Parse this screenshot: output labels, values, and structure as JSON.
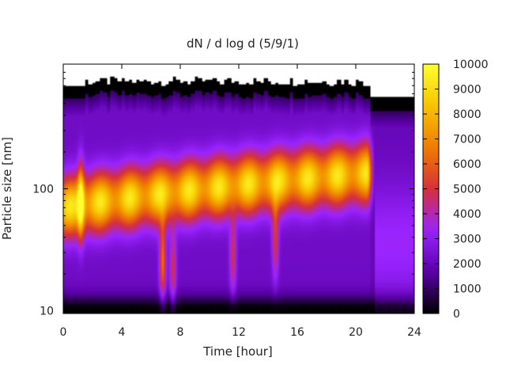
{
  "chart_data": {
    "type": "heatmap",
    "title": "dN / d log d (5/9/1)",
    "xlabel": "Time [hour]",
    "ylabel": "Particle size [nm]",
    "xlim": [
      0,
      24
    ],
    "ylim": [
      9.5,
      1050
    ],
    "yscale": "log",
    "xticks": [
      0,
      4,
      8,
      12,
      16,
      20,
      24
    ],
    "yticks": [
      10,
      100
    ],
    "colorbar": {
      "min": 0,
      "max": 10000,
      "ticks": [
        0,
        1000,
        2000,
        3000,
        4000,
        5000,
        6000,
        7000,
        8000,
        9000,
        10000
      ],
      "colormap": [
        "#000000",
        "#5a00a8",
        "#9a24ff",
        "#d6303a",
        "#f07d00",
        "#f7c400",
        "#ffff30"
      ]
    },
    "grid": false,
    "legend": "colorbar-right",
    "features": [
      {
        "label": "main mode",
        "t_start": 0,
        "t_end": 21,
        "d_start_nm": 70,
        "d_end_nm": 135,
        "peak": 7200
      },
      {
        "label": "plume",
        "t": 1.2,
        "d_nm": 80,
        "peak": 8200
      },
      {
        "label": "plume",
        "t": 6.8,
        "d_nm": 25,
        "peak": 7600
      },
      {
        "label": "plume",
        "t": 7.5,
        "d_nm": 22,
        "peak": 6200
      },
      {
        "label": "plume",
        "t": 11.6,
        "d_nm": 28,
        "peak": 6200
      },
      {
        "label": "plume",
        "t": 14.5,
        "d_nm": 38,
        "peak": 6400
      }
    ]
  }
}
